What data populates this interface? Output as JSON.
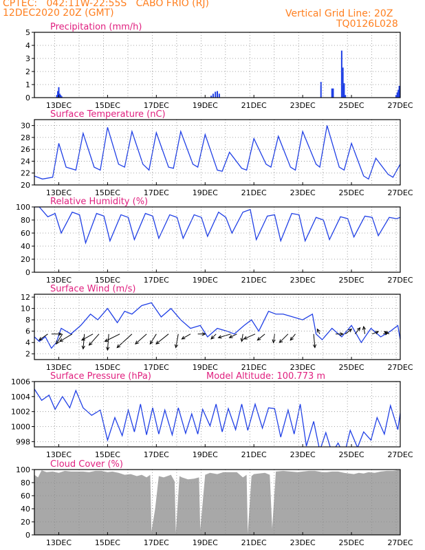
{
  "header": {
    "line1": "CPTEC:   042:11W-22:55S   CABO FRIO (RJ)",
    "line2": "12DEC2020 20Z (GMT)",
    "grid_note": "Vertical Grid Line: 20Z",
    "code": "TQ0126L028"
  },
  "colors": {
    "header": "#ff7f1f",
    "title": "#e0207f",
    "series": "#1f3fe6",
    "cloud": "#a8a8a8"
  },
  "x_ticks": [
    "13DEC",
    "15DEC",
    "17DEC",
    "19DEC",
    "21DEC",
    "23DEC",
    "25DEC",
    "27DEC"
  ],
  "chart_data": [
    {
      "type": "bar",
      "title": "Precipitation (mm/h)",
      "ylim": [
        0,
        5
      ],
      "yticks": [
        "0",
        "1",
        "2",
        "3",
        "4",
        "5"
      ],
      "x": [
        12.92,
        12.96,
        13.0,
        13.04,
        13.08,
        13.12,
        19.25,
        19.33,
        19.42,
        19.5,
        19.58,
        23.75,
        24.2,
        24.25,
        24.6,
        24.65,
        24.7,
        24.75,
        26.83,
        26.88,
        26.92,
        26.96
      ],
      "values": [
        0.2,
        0.5,
        0.8,
        0.3,
        0.2,
        0.1,
        0.15,
        0.3,
        0.45,
        0.5,
        0.3,
        1.2,
        0.7,
        0.7,
        3.6,
        2.3,
        1.1,
        0.2,
        0.2,
        0.4,
        0.6,
        0.9
      ]
    },
    {
      "type": "line",
      "title": "Surface Temperature (nC)",
      "ylim": [
        20,
        31
      ],
      "yticks": [
        "20",
        "22",
        "24",
        "26",
        "28",
        "30"
      ],
      "x": [
        12.0,
        12.33,
        12.75,
        13.0,
        13.3,
        13.7,
        14.0,
        14.45,
        14.7,
        15.0,
        15.45,
        15.7,
        16.0,
        16.45,
        16.7,
        17.0,
        17.5,
        17.7,
        18.0,
        18.5,
        18.7,
        19.0,
        19.5,
        19.7,
        20.0,
        20.5,
        20.7,
        21.0,
        21.5,
        21.7,
        22.0,
        22.5,
        22.7,
        23.0,
        23.55,
        23.7,
        24.0,
        24.5,
        24.7,
        25.0,
        25.5,
        25.7,
        26.0,
        26.5,
        26.7,
        27.0
      ],
      "values": [
        21.5,
        21.0,
        21.3,
        27.0,
        23.0,
        22.5,
        28.7,
        23.0,
        22.5,
        29.7,
        23.5,
        23.0,
        29.0,
        23.5,
        22.5,
        28.8,
        23.0,
        22.8,
        29.0,
        23.5,
        23.0,
        28.5,
        22.5,
        22.3,
        25.5,
        22.8,
        22.5,
        27.8,
        23.5,
        23.0,
        28.2,
        23.0,
        22.5,
        29.0,
        23.5,
        23.0,
        30.0,
        23.0,
        22.5,
        27.0,
        21.5,
        21.0,
        24.5,
        21.8,
        21.3,
        23.5
      ]
    },
    {
      "type": "line",
      "title": "Relative Humidity (%)",
      "ylim": [
        0,
        100
      ],
      "yticks": [
        "0",
        "20",
        "40",
        "60",
        "80",
        "100"
      ],
      "x": [
        12.0,
        12.2,
        12.55,
        12.85,
        13.1,
        13.55,
        13.85,
        14.1,
        14.55,
        14.85,
        15.1,
        15.55,
        15.85,
        16.1,
        16.55,
        16.85,
        17.1,
        17.55,
        17.85,
        18.1,
        18.55,
        18.85,
        19.1,
        19.55,
        19.85,
        20.1,
        20.55,
        20.85,
        21.1,
        21.55,
        21.85,
        22.1,
        22.55,
        22.85,
        23.1,
        23.55,
        23.85,
        24.1,
        24.55,
        24.85,
        25.1,
        25.55,
        25.85,
        26.1,
        26.55,
        26.85,
        27.0
      ],
      "values": [
        100,
        100,
        85,
        90,
        60,
        92,
        88,
        45,
        90,
        86,
        48,
        88,
        84,
        50,
        90,
        86,
        52,
        88,
        84,
        52,
        88,
        84,
        55,
        92,
        84,
        60,
        92,
        96,
        50,
        86,
        88,
        48,
        90,
        88,
        48,
        84,
        80,
        50,
        85,
        82,
        54,
        86,
        84,
        56,
        84,
        82,
        84
      ]
    },
    {
      "type": "line",
      "title": "Surface Wind (m/s)",
      "ylim": [
        1,
        12.5
      ],
      "yticks": [
        "2",
        "4",
        "6",
        "8",
        "10",
        "12"
      ],
      "x": [
        12.0,
        12.2,
        12.45,
        12.7,
        12.9,
        13.1,
        13.5,
        13.9,
        14.3,
        14.6,
        15.0,
        15.4,
        15.7,
        16.0,
        16.4,
        16.8,
        17.2,
        17.6,
        18.0,
        18.4,
        18.8,
        19.1,
        19.5,
        19.9,
        20.2,
        20.6,
        20.9,
        21.2,
        21.6,
        21.9,
        22.2,
        22.6,
        23.0,
        23.4,
        23.55,
        23.8,
        24.2,
        24.6,
        25.0,
        25.4,
        25.8,
        26.2,
        26.6,
        26.9,
        27.0
      ],
      "values": [
        5.0,
        4.2,
        5.0,
        3.0,
        4.0,
        6.5,
        5.5,
        7.0,
        9.0,
        8.0,
        10.0,
        7.5,
        9.5,
        9.0,
        10.5,
        11.0,
        8.5,
        10.0,
        8.0,
        6.5,
        7.0,
        5.0,
        6.5,
        6.0,
        5.5,
        7.0,
        8.0,
        6.0,
        9.5,
        9.0,
        9.0,
        8.5,
        8.0,
        9.0,
        5.5,
        4.5,
        6.5,
        5.0,
        7.0,
        4.0,
        6.5,
        5.0,
        6.0,
        7.0,
        4.5
      ],
      "annotations": "wind barbs (direction arrows)",
      "wind_vectors": [
        [
          12.55,
          -3.5,
          -2.5
        ],
        [
          12.7,
          4.0,
          0.0
        ],
        [
          13.15,
          -2.5,
          -4.0
        ],
        [
          13.55,
          -5.0,
          -3.0
        ],
        [
          14.05,
          -0.5,
          -6.0
        ],
        [
          14.4,
          -4.5,
          -2.5
        ],
        [
          14.65,
          -4.0,
          -4.5
        ],
        [
          15.05,
          -0.5,
          -6.5
        ],
        [
          15.5,
          -6.0,
          -3.0
        ],
        [
          16.0,
          -6.0,
          -5.5
        ],
        [
          16.6,
          -4.5,
          -4.0
        ],
        [
          17.0,
          -2.5,
          -4.0
        ],
        [
          17.5,
          -5.0,
          -4.0
        ],
        [
          17.9,
          -1.0,
          -5.5
        ],
        [
          18.4,
          -3.5,
          -2.0
        ],
        [
          18.7,
          3.0,
          0.0
        ],
        [
          19.45,
          -2.0,
          -2.0
        ],
        [
          20.05,
          -5.0,
          -1.5
        ],
        [
          20.3,
          -3.0,
          -1.5
        ],
        [
          20.55,
          -0.5,
          -3.0
        ],
        [
          21.05,
          -4.5,
          -2.0
        ],
        [
          21.45,
          -3.0,
          -2.5
        ],
        [
          21.85,
          -0.5,
          -3.5
        ],
        [
          22.4,
          -3.5,
          -3.5
        ],
        [
          22.7,
          -2.0,
          -2.5
        ],
        [
          23.45,
          0.5,
          -5.5
        ],
        [
          23.7,
          -1.0,
          2.0
        ],
        [
          24.35,
          3.0,
          0.0
        ],
        [
          24.75,
          2.5,
          2.0
        ],
        [
          25.15,
          2.0,
          2.5
        ],
        [
          25.55,
          -0.5,
          3.0
        ],
        [
          25.85,
          2.5,
          1.0
        ],
        [
          26.3,
          2.0,
          0.5
        ],
        [
          26.55,
          -2.0,
          1.0
        ]
      ]
    },
    {
      "type": "line",
      "title": "Surface Pressure (hPa)",
      "annotation": "Model Altitude: 100.773 m",
      "ylim": [
        997.3,
        1006
      ],
      "yticks": [
        "998",
        "1000",
        "1002",
        "1004",
        "1006"
      ],
      "x": [
        12.0,
        12.3,
        12.6,
        12.85,
        13.15,
        13.45,
        13.7,
        14.0,
        14.35,
        14.7,
        15.0,
        15.3,
        15.6,
        15.85,
        16.1,
        16.35,
        16.6,
        16.85,
        17.1,
        17.35,
        17.65,
        17.9,
        18.2,
        18.45,
        18.7,
        18.9,
        19.2,
        19.45,
        19.7,
        19.95,
        20.25,
        20.5,
        20.75,
        21.05,
        21.35,
        21.6,
        21.85,
        22.1,
        22.4,
        22.65,
        22.9,
        23.15,
        23.45,
        23.7,
        23.95,
        24.2,
        24.45,
        24.7,
        24.95,
        25.25,
        25.5,
        25.8,
        26.05,
        26.35,
        26.6,
        26.9,
        27.0
      ],
      "values": [
        1005.0,
        1003.5,
        1004.2,
        1002.3,
        1004.0,
        1002.5,
        1004.8,
        1002.5,
        1001.5,
        1002.2,
        998.2,
        1001.2,
        998.8,
        1002.2,
        999.3,
        1003.0,
        998.9,
        1002.5,
        999.0,
        1002.2,
        998.9,
        1002.5,
        999.1,
        1001.7,
        999.0,
        1002.3,
        1000.1,
        1003.0,
        999.3,
        1002.4,
        999.6,
        1003.0,
        999.5,
        1003.0,
        999.8,
        1002.5,
        1002.4,
        998.6,
        1002.2,
        999.0,
        1003.0,
        997.4,
        1000.7,
        996.8,
        999.2,
        996.5,
        997.8,
        996.2,
        999.5,
        997.2,
        999.3,
        998.2,
        1001.2,
        999.0,
        1002.8,
        999.6,
        1001.8
      ]
    },
    {
      "type": "area",
      "title": "Cloud Cover (%)",
      "ylim": [
        0,
        100
      ],
      "yticks": [
        "0",
        "20",
        "40",
        "60",
        "80",
        "100"
      ],
      "x": [
        12.0,
        12.15,
        12.3,
        12.5,
        12.75,
        13.0,
        13.25,
        13.5,
        13.75,
        14.0,
        14.25,
        14.5,
        14.75,
        15.0,
        15.2,
        15.45,
        15.7,
        15.95,
        16.2,
        16.4,
        16.6,
        16.75,
        16.8,
        16.95,
        17.1,
        17.3,
        17.6,
        17.75,
        17.8,
        17.95,
        18.05,
        18.3,
        18.55,
        18.75,
        18.8,
        19.0,
        19.2,
        19.5,
        19.75,
        20.0,
        20.3,
        20.55,
        20.7,
        20.75,
        20.9,
        21.0,
        21.2,
        21.45,
        21.65,
        21.75,
        21.9,
        22.2,
        22.5,
        22.8,
        23.0,
        23.25,
        23.5,
        23.8,
        24.0,
        24.2,
        24.45,
        24.7,
        24.9,
        25.1,
        25.3,
        25.5,
        25.7,
        25.95,
        26.2,
        26.45,
        26.7,
        26.9,
        27.0
      ],
      "values": [
        92,
        88,
        99,
        96,
        97,
        95,
        98,
        97,
        97,
        97,
        96,
        98,
        98,
        96,
        97,
        95,
        92,
        93,
        90,
        92,
        88,
        92,
        5,
        40,
        90,
        88,
        92,
        82,
        3,
        90,
        88,
        85,
        86,
        88,
        8,
        92,
        95,
        93,
        96,
        96,
        96,
        88,
        92,
        2,
        90,
        93,
        94,
        95,
        92,
        10,
        97,
        98,
        97,
        96,
        97,
        98,
        98,
        96,
        96,
        97,
        97,
        95,
        94,
        93,
        95,
        94,
        96,
        95,
        97,
        98,
        98,
        99,
        99
      ]
    }
  ]
}
